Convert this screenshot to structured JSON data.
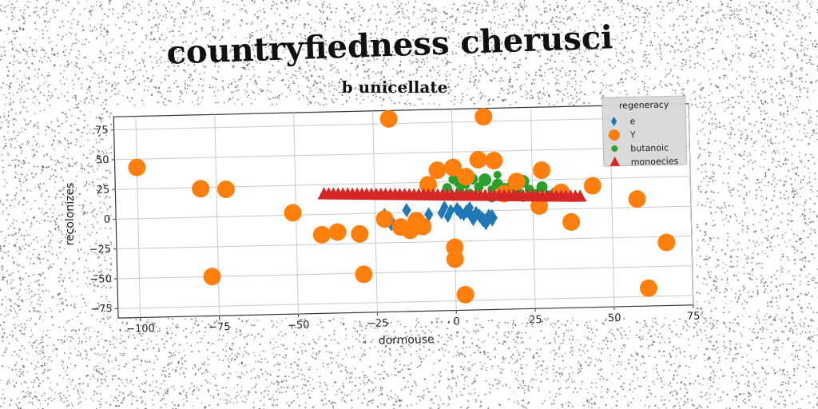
{
  "chart_data": {
    "type": "scatter",
    "suptitle": "countryfiedness cherusci",
    "title": "b unicellate",
    "xlabel": "dormouse",
    "ylabel": "recolonizes",
    "xlim": [
      -107,
      75
    ],
    "ylim": [
      -83,
      86
    ],
    "xticks": [
      -100,
      -75,
      -50,
      -25,
      0,
      25,
      50,
      75
    ],
    "yticks": [
      -75,
      -50,
      -25,
      0,
      25,
      50,
      75
    ],
    "grid": true,
    "legend": {
      "title": "regeneracy",
      "placement": "upper-right"
    },
    "series": [
      {
        "name": "e",
        "marker": "diamond",
        "color": "#1f77b4",
        "points": [
          [
            -22,
            -3
          ],
          [
            -20,
            -8
          ],
          [
            -15,
            2
          ],
          [
            -8,
            -2
          ],
          [
            -4,
            -1
          ],
          [
            -3,
            4
          ],
          [
            -1,
            1
          ],
          [
            -2,
            -4
          ],
          [
            1,
            2
          ],
          [
            2,
            -1
          ],
          [
            3,
            -3
          ],
          [
            4,
            0
          ],
          [
            5,
            -2
          ],
          [
            5,
            3
          ],
          [
            6,
            -6
          ],
          [
            7,
            -1
          ],
          [
            8,
            -4
          ],
          [
            9,
            -7
          ],
          [
            10,
            -9
          ],
          [
            11,
            -5
          ],
          [
            12,
            -6
          ]
        ],
        "sizes": [
          11,
          11,
          9,
          9,
          8,
          8,
          8,
          8,
          9,
          9,
          8,
          9,
          9,
          8,
          10,
          8,
          9,
          10,
          11,
          10,
          11
        ]
      },
      {
        "name": "Y",
        "marker": "circle",
        "color": "#ff7f0e",
        "points": [
          [
            -100,
            43
          ],
          [
            -80,
            24
          ],
          [
            -72,
            23
          ],
          [
            -77,
            -50
          ],
          [
            -51,
            2
          ],
          [
            -42,
            -17
          ],
          [
            -37,
            -15
          ],
          [
            -30,
            -17
          ],
          [
            -29,
            -51
          ],
          [
            -22,
            -5
          ],
          [
            -20,
            79
          ],
          [
            -17,
            -12
          ],
          [
            -12,
            -7
          ],
          [
            -10,
            -12
          ],
          [
            -14,
            -15
          ],
          [
            -5,
            35
          ],
          [
            0,
            37
          ],
          [
            0,
            -30
          ],
          [
            0,
            -40
          ],
          [
            3,
            -70
          ],
          [
            8,
            43
          ],
          [
            10,
            79
          ],
          [
            13,
            42
          ],
          [
            16,
            14
          ],
          [
            20,
            24
          ],
          [
            28,
            33
          ],
          [
            27,
            3
          ],
          [
            34,
            14
          ],
          [
            37,
            -11
          ],
          [
            44,
            19
          ],
          [
            58,
            7
          ],
          [
            61,
            -68
          ],
          [
            67,
            -30
          ],
          [
            -8,
            23
          ],
          [
            4,
            29
          ]
        ],
        "sizes": [
          11,
          11,
          11,
          11,
          11,
          11,
          11,
          11,
          11,
          11,
          11,
          11,
          11,
          11,
          11,
          11,
          11,
          11,
          11,
          11,
          11,
          11,
          11,
          11,
          11,
          11,
          11,
          11,
          11,
          11,
          11,
          11,
          11,
          11,
          11
        ]
      },
      {
        "name": "butanoic",
        "marker": "circle",
        "color": "#2ca02c",
        "points": [
          [
            0,
            27
          ],
          [
            2,
            25
          ],
          [
            4,
            22
          ],
          [
            6,
            27
          ],
          [
            8,
            20
          ],
          [
            10,
            26
          ],
          [
            12,
            18
          ],
          [
            14,
            22
          ],
          [
            16,
            19
          ],
          [
            18,
            21
          ],
          [
            20,
            16
          ],
          [
            22,
            24
          ],
          [
            24,
            17
          ],
          [
            26,
            14
          ],
          [
            28,
            19
          ],
          [
            30,
            12
          ],
          [
            32,
            15
          ],
          [
            2,
            17
          ],
          [
            5,
            14
          ],
          [
            8,
            12
          ],
          [
            12,
            11
          ],
          [
            17,
            14
          ],
          [
            22,
            10
          ],
          [
            -2,
            20
          ],
          [
            14,
            30
          ]
        ],
        "sizes": [
          6,
          8,
          5,
          7,
          6,
          8,
          5,
          7,
          6,
          5,
          7,
          8,
          6,
          5,
          7,
          6,
          5,
          6,
          7,
          5,
          6,
          7,
          5,
          6,
          5
        ]
      },
      {
        "name": "monoecies",
        "marker": "triangle",
        "color": "#d62728",
        "x_range": [
          -41,
          40
        ],
        "count": 55,
        "y_start": 17,
        "y_end": 10,
        "size": 9
      }
    ]
  }
}
